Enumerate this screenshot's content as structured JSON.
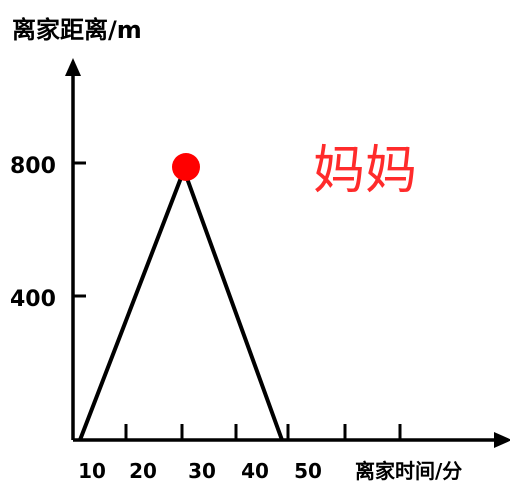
{
  "chart_data": {
    "type": "line",
    "ylabel": "离家距离/m",
    "xlabel": "离家时间/分",
    "annotation": "妈妈",
    "x_ticks": [
      "10",
      "20",
      "30",
      "40",
      "50"
    ],
    "y_ticks": [
      "400",
      "800"
    ],
    "xlim": [
      0,
      58
    ],
    "ylim": [
      0,
      1000
    ],
    "series": [
      {
        "points": [
          {
            "x": 0,
            "y": 0
          },
          {
            "x": 18.5,
            "y": 800
          },
          {
            "x": 37,
            "y": 0
          }
        ],
        "color": "#000000"
      }
    ],
    "highlight": {
      "x": 18.5,
      "y": 800,
      "color": "#ff0000"
    }
  }
}
